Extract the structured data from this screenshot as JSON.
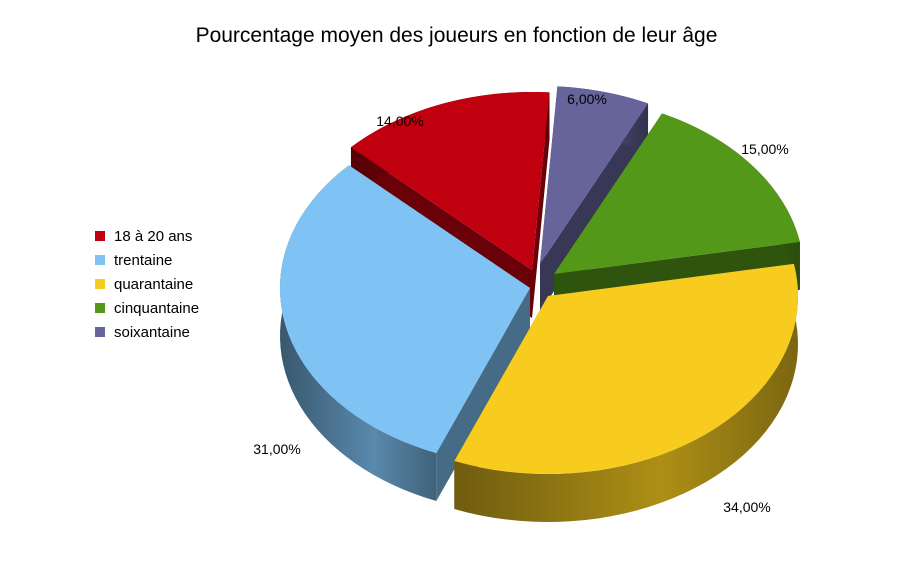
{
  "chart_data": {
    "type": "pie",
    "title": "Pourcentage moyen des joueurs en fonction de leur âge",
    "legend_position": "left",
    "categories": [
      "18 à 20 ans",
      "trentaine",
      "quarantaine",
      "cinquantaine",
      "soixantaine"
    ],
    "values": [
      14,
      31,
      34,
      15,
      6
    ],
    "value_labels": [
      "14,00%",
      "31,00%",
      "34,00%",
      "15,00%",
      "6,00%"
    ],
    "colors": [
      "#c0000f",
      "#7fc3f5",
      "#f7cc1f",
      "#54981a",
      "#66649a"
    ],
    "exploded": true,
    "three_d": true
  }
}
